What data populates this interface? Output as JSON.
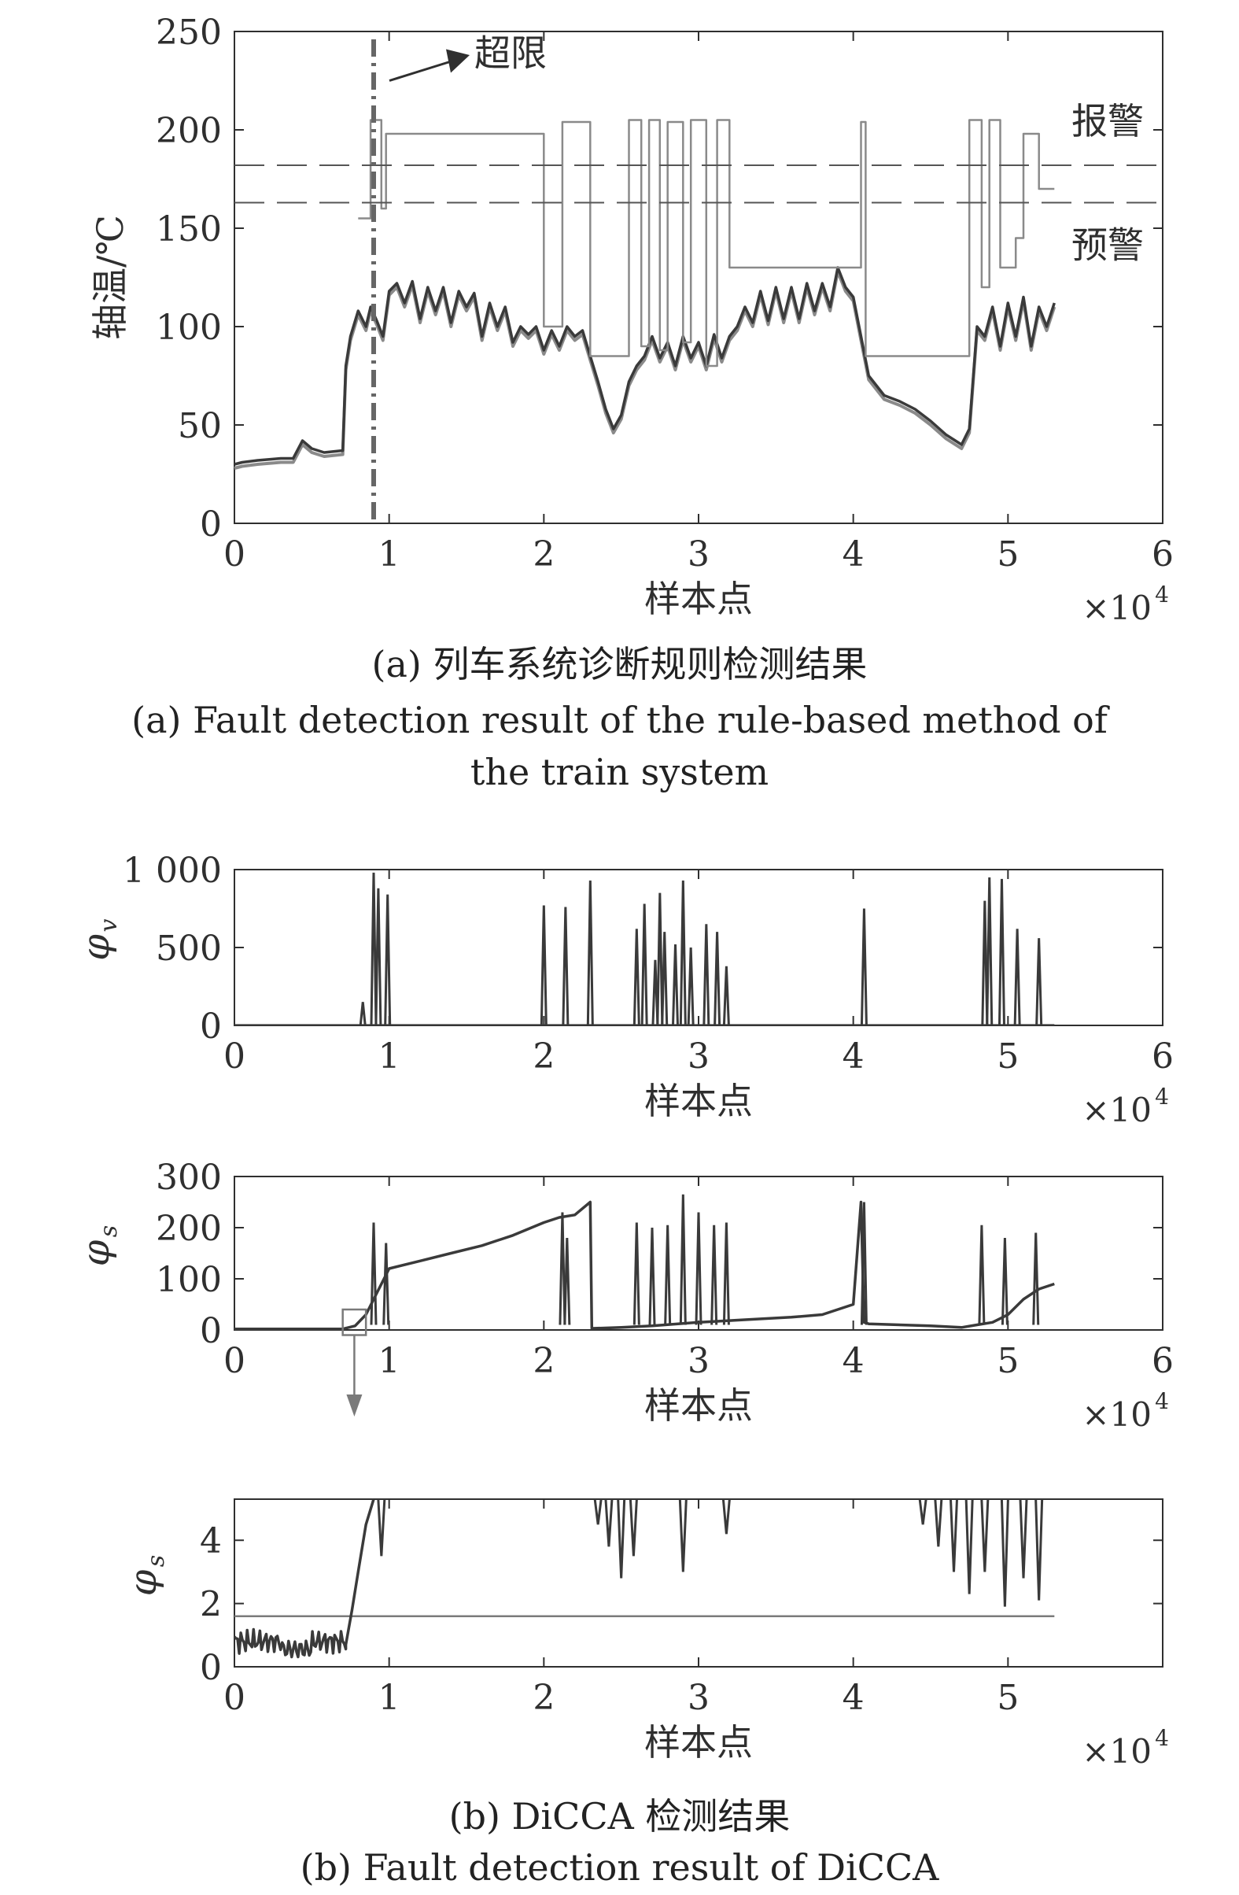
{
  "captions": {
    "a_zh": "(a) 列车系统诊断规则检测结果",
    "a_en_1": "(a) Fault detection result of the rule-based method of",
    "a_en_2": "the train system",
    "b_zh": "(b) DiCCA 检测结果",
    "b_en": "(b) Fault detection result of DiCCA"
  },
  "colors": {
    "ink": "#2f2f2f",
    "series_dark": "#3a3a3a",
    "series_light": "#8a8a8a",
    "threshold": "#7a7a7a",
    "dash": "#555555"
  },
  "chart_data": [
    {
      "id": "a",
      "type": "line",
      "xlabel": "样本点",
      "ylabel": "轴温/℃",
      "x_multiplier": "×10",
      "x_exponent": "4",
      "xlim": [
        0,
        6
      ],
      "ylim": [
        0,
        250
      ],
      "xticks": [
        "0",
        "1",
        "2",
        "3",
        "4",
        "5",
        "6"
      ],
      "yticks": [
        "0",
        "50",
        "100",
        "150",
        "200",
        "250"
      ],
      "annotations": {
        "exceed": "超限",
        "alarm": "报警",
        "warning": "预警"
      },
      "exceed_x": 0.9,
      "alarm_level": 182,
      "warning_level": 163,
      "series": [
        {
          "x": [
            0,
            0.05,
            0.15,
            0.3,
            0.38,
            0.44,
            0.5,
            0.58,
            0.7,
            0.72,
            0.75,
            0.8,
            0.85,
            0.88,
            0.92,
            0.96,
            1.0,
            1.05,
            1.1,
            1.15,
            1.2,
            1.25,
            1.3,
            1.35,
            1.4,
            1.45,
            1.5,
            1.55,
            1.6,
            1.65,
            1.7,
            1.75,
            1.8,
            1.85,
            1.9,
            1.95,
            2.0,
            2.05,
            2.1,
            2.15,
            2.2,
            2.25,
            2.3,
            2.35,
            2.4,
            2.45,
            2.5,
            2.55,
            2.6,
            2.65,
            2.7,
            2.75,
            2.8,
            2.85,
            2.9,
            2.95,
            3.0,
            3.05,
            3.1,
            3.15,
            3.2,
            3.25,
            3.3,
            3.35,
            3.4,
            3.45,
            3.5,
            3.55,
            3.6,
            3.65,
            3.7,
            3.75,
            3.8,
            3.85,
            3.9,
            3.95,
            4.0,
            4.05,
            4.1,
            4.2,
            4.3,
            4.4,
            4.5,
            4.6,
            4.7,
            4.75,
            4.8,
            4.85,
            4.9,
            4.95,
            5.0,
            5.05,
            5.1,
            5.15,
            5.2,
            5.25,
            5.3
          ],
          "y": [
            30,
            31,
            32,
            33,
            33,
            42,
            38,
            36,
            37,
            80,
            95,
            108,
            100,
            110,
            103,
            95,
            118,
            122,
            112,
            123,
            104,
            120,
            108,
            120,
            102,
            118,
            110,
            117,
            95,
            112,
            100,
            110,
            92,
            100,
            96,
            100,
            88,
            98,
            90,
            100,
            95,
            98,
            85,
            72,
            58,
            48,
            55,
            72,
            80,
            85,
            95,
            84,
            92,
            80,
            95,
            84,
            92,
            80,
            96,
            84,
            95,
            100,
            110,
            102,
            118,
            103,
            120,
            104,
            120,
            104,
            122,
            108,
            122,
            110,
            130,
            120,
            115,
            95,
            75,
            65,
            62,
            58,
            52,
            45,
            40,
            48,
            100,
            95,
            110,
            90,
            112,
            95,
            115,
            90,
            110,
            100,
            112
          ]
        },
        {
          "x": [
            0,
            0.8,
            0.8,
            0.88,
            0.88,
            0.95,
            0.95,
            0.98,
            0.98,
            1.02,
            1.02,
            2.0,
            2.0,
            2.12,
            2.12,
            2.15,
            2.15,
            2.3,
            2.3,
            2.55,
            2.55,
            2.63,
            2.63,
            2.68,
            2.68,
            2.75,
            2.75,
            2.8,
            2.8,
            2.9,
            2.9,
            2.95,
            2.95,
            3.05,
            3.05,
            3.12,
            3.12,
            3.2,
            3.2,
            3.9,
            3.9,
            4.05,
            4.05,
            4.08,
            4.08,
            4.75,
            4.75,
            4.83,
            4.83,
            4.88,
            4.88,
            4.95,
            4.95,
            5.05,
            5.05,
            5.1,
            5.1,
            5.2,
            5.2,
            5.3
          ],
          "y": [
            null,
            null,
            155,
            155,
            205,
            205,
            160,
            160,
            198,
            198,
            198,
            198,
            100,
            100,
            204,
            204,
            204,
            204,
            85,
            85,
            205,
            205,
            90,
            90,
            205,
            205,
            88,
            88,
            204,
            204,
            92,
            92,
            205,
            205,
            80,
            80,
            205,
            205,
            130,
            130,
            130,
            130,
            204,
            204,
            85,
            85,
            205,
            205,
            120,
            120,
            205,
            205,
            130,
            130,
            145,
            145,
            198,
            198,
            170,
            170
          ]
        }
      ]
    },
    {
      "id": "b1",
      "type": "line",
      "xlabel": "样本点",
      "ylabel": "φ",
      "ylabel_sub": "v",
      "x_multiplier": "×10",
      "x_exponent": "4",
      "xlim": [
        0,
        6
      ],
      "ylim": [
        0,
        1000
      ],
      "xticks": [
        "0",
        "1",
        "2",
        "3",
        "4",
        "5",
        "6"
      ],
      "yticks": [
        "0",
        "500",
        "1 000"
      ],
      "spikes": [
        [
          0.83,
          150
        ],
        [
          0.9,
          980
        ],
        [
          0.93,
          880
        ],
        [
          0.99,
          840
        ],
        [
          2.0,
          770
        ],
        [
          2.14,
          760
        ],
        [
          2.3,
          930
        ],
        [
          2.6,
          620
        ],
        [
          2.65,
          780
        ],
        [
          2.72,
          420
        ],
        [
          2.75,
          850
        ],
        [
          2.78,
          600
        ],
        [
          2.85,
          520
        ],
        [
          2.9,
          930
        ],
        [
          2.95,
          500
        ],
        [
          3.05,
          650
        ],
        [
          3.12,
          600
        ],
        [
          3.18,
          380
        ],
        [
          4.07,
          750
        ],
        [
          4.85,
          800
        ],
        [
          4.88,
          950
        ],
        [
          4.96,
          940
        ],
        [
          5.06,
          620
        ],
        [
          5.2,
          560
        ]
      ]
    },
    {
      "id": "b2",
      "type": "line",
      "xlabel": "样本点",
      "ylabel": "φ",
      "ylabel_sub": "s",
      "x_multiplier": "×10",
      "x_exponent": "4",
      "xlim": [
        0,
        6
      ],
      "ylim": [
        0,
        300
      ],
      "xticks": [
        "0",
        "1",
        "2",
        "3",
        "4",
        "5",
        "6"
      ],
      "yticks": [
        "0",
        "100",
        "200",
        "300"
      ],
      "x": [
        0,
        0.7,
        0.78,
        0.85,
        0.9,
        1.0,
        1.2,
        1.4,
        1.6,
        1.8,
        2.0,
        2.1,
        2.2,
        2.3,
        2.31,
        2.5,
        2.7,
        3.0,
        3.3,
        3.6,
        3.8,
        4.0,
        4.05,
        4.07,
        4.1,
        4.5,
        4.7,
        4.8,
        4.9,
        5.0,
        5.1,
        5.2,
        5.3
      ],
      "y": [
        2,
        2,
        8,
        30,
        60,
        120,
        135,
        150,
        165,
        185,
        210,
        220,
        225,
        250,
        3,
        5,
        8,
        15,
        20,
        25,
        30,
        50,
        250,
        15,
        12,
        8,
        5,
        10,
        15,
        30,
        60,
        80,
        90
      ],
      "spikes": [
        [
          0.9,
          210
        ],
        [
          0.98,
          170
        ],
        [
          2.12,
          230
        ],
        [
          2.15,
          180
        ],
        [
          2.6,
          210
        ],
        [
          2.7,
          200
        ],
        [
          2.8,
          205
        ],
        [
          2.9,
          265
        ],
        [
          3.0,
          230
        ],
        [
          3.1,
          205
        ],
        [
          3.18,
          210
        ],
        [
          4.07,
          250
        ],
        [
          4.83,
          205
        ],
        [
          4.98,
          180
        ],
        [
          5.18,
          190
        ]
      ],
      "zoom_box_x": [
        0.7,
        0.85
      ]
    },
    {
      "id": "b3",
      "type": "line",
      "xlabel": "样本点",
      "ylabel": "φ",
      "ylabel_sub": "s",
      "x_multiplier": "×10",
      "x_exponent": "4",
      "xlim": [
        0,
        6
      ],
      "ylim": [
        0,
        5.3
      ],
      "xticks": [
        "0",
        "1",
        "2",
        "3",
        "4",
        "5"
      ],
      "yticks": [
        "0",
        "2",
        "4"
      ],
      "control_limit": 1.6,
      "x": [
        0,
        0.2,
        0.4,
        0.6,
        0.72,
        0.76,
        0.8,
        0.85,
        0.9
      ],
      "y": [
        0.8,
        0.75,
        0.5,
        1.0,
        0.7,
        1.8,
        3.0,
        4.5,
        5.3
      ],
      "dips": [
        [
          0.95,
          3.5
        ],
        [
          2.35,
          4.5
        ],
        [
          2.42,
          3.8
        ],
        [
          2.5,
          2.8
        ],
        [
          2.58,
          3.5
        ],
        [
          2.9,
          3.0
        ],
        [
          3.18,
          4.2
        ],
        [
          4.45,
          4.5
        ],
        [
          4.55,
          3.8
        ],
        [
          4.65,
          3.0
        ],
        [
          4.75,
          2.3
        ],
        [
          4.85,
          3.0
        ],
        [
          4.98,
          1.9
        ],
        [
          5.1,
          2.8
        ],
        [
          5.2,
          2.1
        ]
      ]
    }
  ]
}
